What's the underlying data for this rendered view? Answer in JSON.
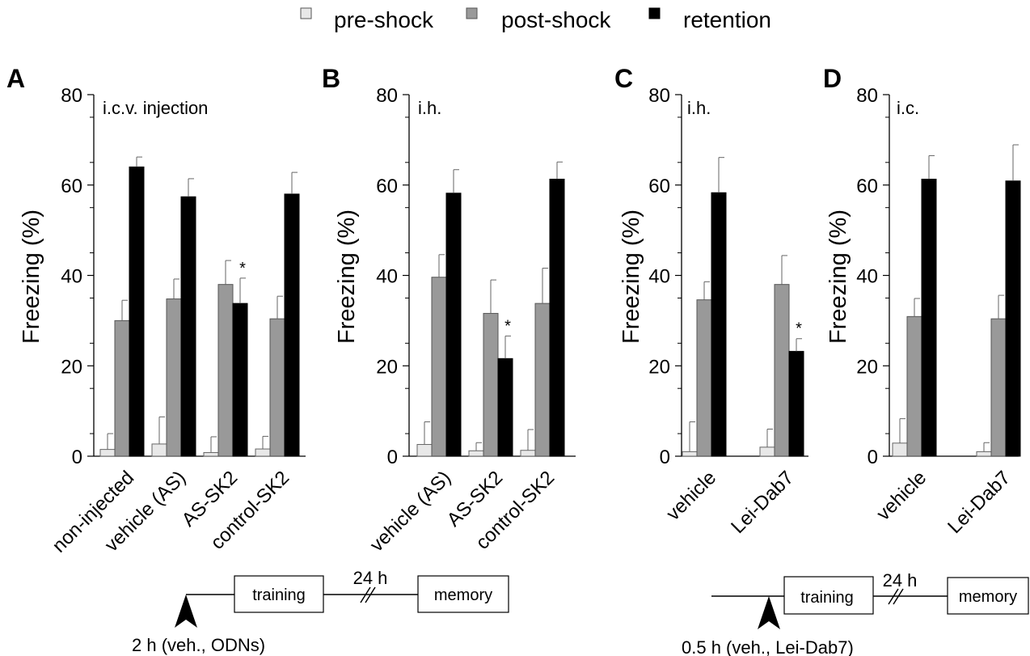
{
  "legend": [
    {
      "label": "pre-shock",
      "color": "#e8e8e8"
    },
    {
      "label": "post-shock",
      "color": "#999999"
    },
    {
      "label": "retention",
      "color": "#000000"
    }
  ],
  "chart_data": [
    {
      "type": "bar",
      "panel": "A",
      "annotation": "i.c.v. injection",
      "ylabel": "Freezing (%)",
      "ylim": [
        0,
        80
      ],
      "yticks": [
        "0",
        "20",
        "40",
        "60",
        "80"
      ],
      "categories": [
        "non-injected",
        "vehicle (AS)",
        "AS-SK2",
        "control-SK2"
      ],
      "series": [
        {
          "name": "pre-shock",
          "values": [
            1.5,
            2.7,
            0.8,
            1.6
          ],
          "errors": [
            3.5,
            6.0,
            3.5,
            2.8
          ]
        },
        {
          "name": "post-shock",
          "values": [
            30.0,
            34.8,
            38.0,
            30.4
          ],
          "errors": [
            4.5,
            4.4,
            5.3,
            5.0
          ]
        },
        {
          "name": "retention",
          "values": [
            64.0,
            57.4,
            33.8,
            58.0
          ],
          "errors": [
            2.2,
            4.0,
            5.6,
            4.8
          ]
        }
      ],
      "significance": [
        "",
        "",
        "*",
        ""
      ]
    },
    {
      "type": "bar",
      "panel": "B",
      "annotation": "i.h.",
      "ylabel": "Freezing (%)",
      "ylim": [
        0,
        80
      ],
      "yticks": [
        "0",
        "20",
        "40",
        "60",
        "80"
      ],
      "categories": [
        "vehicle (AS)",
        "AS-SK2",
        "control-SK2"
      ],
      "series": [
        {
          "name": "pre-shock",
          "values": [
            2.6,
            1.2,
            1.3
          ],
          "errors": [
            5.0,
            1.8,
            4.6
          ]
        },
        {
          "name": "post-shock",
          "values": [
            39.6,
            31.6,
            33.8
          ],
          "errors": [
            5.0,
            7.4,
            7.8
          ]
        },
        {
          "name": "retention",
          "values": [
            58.2,
            21.6,
            61.3
          ],
          "errors": [
            5.2,
            5.0,
            3.8
          ]
        }
      ],
      "significance": [
        "",
        "*",
        ""
      ]
    },
    {
      "type": "bar",
      "panel": "C",
      "annotation": "i.h.",
      "ylabel": "Freezing (%)",
      "ylim": [
        0,
        80
      ],
      "yticks": [
        "0",
        "20",
        "40",
        "60",
        "80"
      ],
      "categories": [
        "vehicle",
        "Lei-Dab7"
      ],
      "series": [
        {
          "name": "pre-shock",
          "values": [
            1.0,
            2.0
          ],
          "errors": [
            6.6,
            4.0
          ]
        },
        {
          "name": "post-shock",
          "values": [
            34.6,
            38.0
          ],
          "errors": [
            4.0,
            6.4
          ]
        },
        {
          "name": "retention",
          "values": [
            58.3,
            23.2
          ],
          "errors": [
            7.8,
            2.8
          ]
        }
      ],
      "significance": [
        "",
        "*"
      ]
    },
    {
      "type": "bar",
      "panel": "D",
      "annotation": "i.c.",
      "ylabel": "Freezing (%)",
      "ylim": [
        0,
        80
      ],
      "yticks": [
        "0",
        "20",
        "40",
        "60",
        "80"
      ],
      "categories": [
        "vehicle",
        "Lei-Dab7"
      ],
      "series": [
        {
          "name": "pre-shock",
          "values": [
            2.9,
            1.0
          ],
          "errors": [
            5.4,
            2.0
          ]
        },
        {
          "name": "post-shock",
          "values": [
            30.9,
            30.4
          ],
          "errors": [
            4.0,
            5.2
          ]
        },
        {
          "name": "retention",
          "values": [
            61.3,
            60.9
          ],
          "errors": [
            5.2,
            8.0
          ]
        }
      ],
      "significance": [
        "",
        ""
      ]
    }
  ],
  "timelines": [
    {
      "training": "training",
      "interval": "24 h",
      "memory": "memory",
      "injection": "2 h (veh., ODNs)"
    },
    {
      "training": "training",
      "interval": "24 h",
      "memory": "memory",
      "injection": "0.5 h (veh., Lei-Dab7)"
    }
  ]
}
